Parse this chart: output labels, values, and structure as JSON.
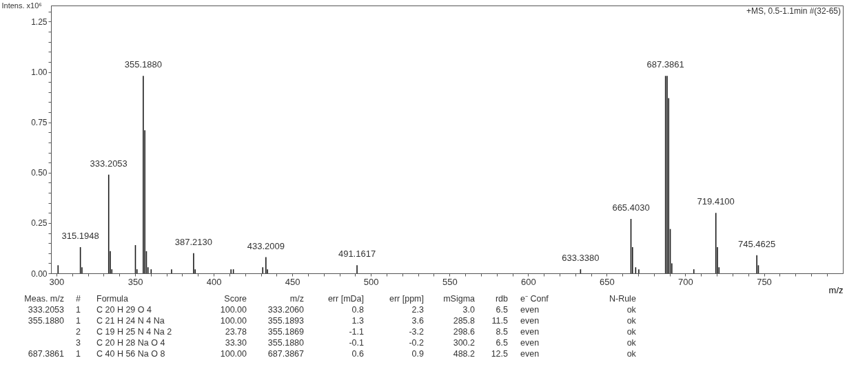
{
  "chart_data": {
    "type": "bar",
    "ylabel": "Intens. x10⁶",
    "xlabel": "m/z",
    "color": "#1a1a1a",
    "x": [
      301,
      315.1948,
      316.2,
      333.2053,
      334.2,
      335.2,
      350.2,
      351.2,
      355.188,
      356.19,
      357.2,
      358.2,
      360.2,
      373.2,
      387.213,
      388.2,
      411,
      412.5,
      431.2,
      433.2009,
      434.2,
      491.1617,
      633.338,
      665.403,
      666.4,
      668.4,
      670.4,
      687.3861,
      688.39,
      689.39,
      690.4,
      691.4,
      705.4,
      719.41,
      720.41,
      721.4,
      745.4625,
      746.47
    ],
    "values": [
      0.04,
      0.13,
      0.03,
      0.49,
      0.11,
      0.02,
      0.14,
      0.02,
      0.98,
      0.71,
      0.11,
      0.03,
      0.02,
      0.02,
      0.1,
      0.02,
      0.02,
      0.02,
      0.03,
      0.08,
      0.02,
      0.04,
      0.02,
      0.27,
      0.13,
      0.03,
      0.02,
      0.98,
      0.98,
      0.87,
      0.22,
      0.05,
      0.02,
      0.3,
      0.13,
      0.03,
      0.09,
      0.04
    ],
    "xlim": [
      298.7,
      798
    ],
    "xticks": [
      300,
      {
        "value": 310,
        "label": null
      },
      {
        "value": 320,
        "label": null
      },
      {
        "value": 330,
        "label": null
      },
      {
        "value": 340,
        "label": null
      },
      350,
      {
        "value": 360,
        "label": null
      },
      {
        "value": 370,
        "label": null
      },
      {
        "value": 380,
        "label": null
      },
      {
        "value": 390,
        "label": null
      },
      400,
      {
        "value": 410,
        "label": null
      },
      {
        "value": 420,
        "label": null
      },
      {
        "value": 430,
        "label": null
      },
      {
        "value": 440,
        "label": null
      },
      450,
      {
        "value": 460,
        "label": null
      },
      {
        "value": 470,
        "label": null
      },
      {
        "value": 480,
        "label": null
      },
      {
        "value": 490,
        "label": null
      },
      500,
      {
        "value": 510,
        "label": null
      },
      {
        "value": 520,
        "label": null
      },
      {
        "value": 530,
        "label": null
      },
      {
        "value": 540,
        "label": null
      },
      550,
      {
        "value": 560,
        "label": null
      },
      {
        "value": 570,
        "label": null
      },
      {
        "value": 580,
        "label": null
      },
      {
        "value": 590,
        "label": null
      },
      600,
      {
        "value": 610,
        "label": null
      },
      {
        "value": 620,
        "label": null
      },
      {
        "value": 630,
        "label": null
      },
      {
        "value": 640,
        "label": null
      },
      650,
      {
        "value": 660,
        "label": null
      },
      {
        "value": 670,
        "label": null
      },
      {
        "value": 680,
        "label": null
      },
      {
        "value": 690,
        "label": null
      },
      700,
      {
        "value": 710,
        "label": null
      },
      {
        "value": 720,
        "label": null
      },
      {
        "value": 730,
        "label": null
      },
      {
        "value": 740,
        "label": null
      },
      750,
      {
        "value": 760,
        "label": null
      },
      {
        "value": 770,
        "label": null
      },
      {
        "value": 780,
        "label": null
      },
      {
        "value": 790,
        "label": null
      }
    ],
    "ylim": [
      0,
      1.33
    ],
    "yticks": [
      {
        "value": 0,
        "label": "0.00"
      },
      {
        "value": 0.05,
        "label": null
      },
      {
        "value": 0.1,
        "label": null
      },
      {
        "value": 0.15,
        "label": null
      },
      {
        "value": 0.2,
        "label": null
      },
      {
        "value": 0.25,
        "label": "0.25"
      },
      {
        "value": 0.3,
        "label": null
      },
      {
        "value": 0.35,
        "label": null
      },
      {
        "value": 0.4,
        "label": null
      },
      {
        "value": 0.45,
        "label": null
      },
      {
        "value": 0.5,
        "label": "0.50"
      },
      {
        "value": 0.55,
        "label": null
      },
      {
        "value": 0.6,
        "label": null
      },
      {
        "value": 0.65,
        "label": null
      },
      {
        "value": 0.7,
        "label": null
      },
      {
        "value": 0.75,
        "label": "0.75"
      },
      {
        "value": 0.8,
        "label": null
      },
      {
        "value": 0.85,
        "label": null
      },
      {
        "value": 0.9,
        "label": null
      },
      {
        "value": 0.95,
        "label": null
      },
      {
        "value": 1,
        "label": "1.00"
      },
      {
        "value": 1.05,
        "label": null
      },
      {
        "value": 1.1,
        "label": null
      },
      {
        "value": 1.15,
        "label": null
      },
      {
        "value": 1.2,
        "label": null
      },
      {
        "value": 1.25,
        "label": "1.25"
      },
      {
        "value": 1.3,
        "label": null
      }
    ],
    "grid": false,
    "annotations": [
      "+MS, 0.5-1.1min #(32-65)",
      {
        "text": "315.1948",
        "x": 315.1948,
        "y": 0.13
      },
      {
        "text": "333.2053",
        "x": 333.2053,
        "y": 0.49
      },
      {
        "text": "355.1880",
        "x": 355.188,
        "y": 0.98
      },
      {
        "text": "387.2130",
        "x": 387.213,
        "y": 0.1
      },
      {
        "text": "433.2009",
        "x": 433.2009,
        "y": 0.08
      },
      {
        "text": "491.1617",
        "x": 491.1617,
        "y": 0.04
      },
      {
        "text": "633.3380",
        "x": 633.338,
        "y": 0.02
      },
      {
        "text": "665.4030",
        "x": 665.403,
        "y": 0.27
      },
      {
        "text": "687.3861",
        "x": 687.3861,
        "y": 0.98
      },
      {
        "text": "719.4100",
        "x": 719.41,
        "y": 0.3
      },
      {
        "text": "745.4625",
        "x": 745.4625,
        "y": 0.09
      },
      "Meas. m/z\t#\tFormula\tScore\tm/z\terr [mDa]\terr [ppm]\tmSigma\trdb\te⁻ Conf\tN-Rule",
      "333.2053\t1\tC 20 H 29 O 4\t100.00\t333.2060\t0.8\t2.3\t3.0\t6.5\teven\tok",
      "355.1880\t1\tC 21 H 24 N 4 Na\t100.00\t355.1893\t1.3\t3.6\t285.8\t11.5\teven\tok",
      "\t2\tC 19 H 25 N 4 Na 2\t23.78\t355.1869\t-1.1\t-3.2\t298.6\t8.5\teven\tok",
      "\t3\tC 20 H 28 Na O 4\t33.30\t355.1880\t-0.1\t-0.2\t300.2\t6.5\teven\tok",
      "687.3861\t1\tC 40 H 56 Na O 8\t100.00\t687.3867\t0.6\t0.9\t488.2\t12.5\teven\tok"
    ]
  }
}
